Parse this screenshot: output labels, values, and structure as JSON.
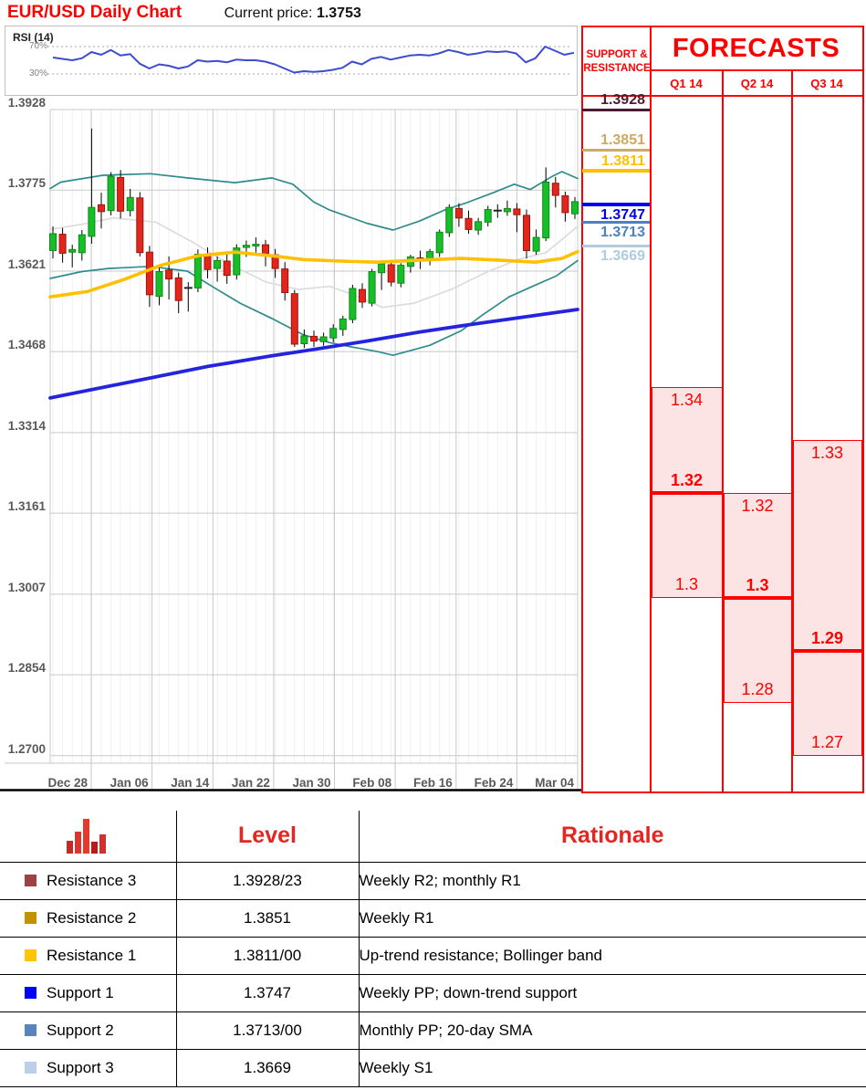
{
  "header": {
    "title": "EUR/USD Daily Chart",
    "current_price_label": "Current price:",
    "current_price": "1.3753"
  },
  "rsi": {
    "label": "RSI (14)",
    "upper_label": "70%",
    "lower_label": "30%",
    "upper": 70,
    "lower": 30,
    "line_color": "#3C4CD0",
    "values": [
      54,
      52,
      50,
      53,
      62,
      58,
      65,
      57,
      59,
      45,
      38,
      44,
      42,
      38,
      41,
      50,
      48,
      49,
      47,
      51,
      50,
      50,
      48,
      44,
      38,
      32,
      34,
      33,
      34,
      36,
      39,
      48,
      44,
      52,
      55,
      51,
      54,
      57,
      58,
      57,
      60,
      65,
      62,
      58,
      60,
      63,
      62,
      63,
      60,
      47,
      53,
      70,
      64,
      58,
      61
    ]
  },
  "chart_data": {
    "type": "candlestick",
    "title": "EUR/USD Daily Chart",
    "ylabel": "",
    "xlabel": "",
    "ylim": [
      1.27,
      1.3928
    ],
    "grid": true,
    "y_ticks": [
      "1.3928",
      "1.3775",
      "1.3621",
      "1.3468",
      "1.3314",
      "1.3161",
      "1.3007",
      "1.2854",
      "1.2700"
    ],
    "x_ticks": [
      "Dec 28",
      "Jan 06",
      "Jan 14",
      "Jan 22",
      "Jan 30",
      "Feb 08",
      "Feb 16",
      "Feb 24",
      "Mar 04"
    ],
    "colors": {
      "up_fill": "#17BE29",
      "up_stroke": "#0B8A16",
      "down_fill": "#E2261B",
      "down_stroke": "#9E130B",
      "wick": "#000000"
    },
    "candles": [
      [
        1.366,
        1.3706,
        1.3645,
        1.3692
      ],
      [
        1.3691,
        1.3703,
        1.3637,
        1.3655
      ],
      [
        1.3657,
        1.3671,
        1.3628,
        1.3662
      ],
      [
        1.3656,
        1.3699,
        1.3641,
        1.369
      ],
      [
        1.3687,
        1.3892,
        1.3673,
        1.3742
      ],
      [
        1.3747,
        1.377,
        1.3702,
        1.3734
      ],
      [
        1.3736,
        1.3809,
        1.3727,
        1.3801
      ],
      [
        1.3799,
        1.3813,
        1.3721,
        1.3735
      ],
      [
        1.3736,
        1.3777,
        1.3725,
        1.3761
      ],
      [
        1.376,
        1.3771,
        1.3649,
        1.3656
      ],
      [
        1.3657,
        1.3669,
        1.3553,
        1.3576
      ],
      [
        1.3573,
        1.3633,
        1.3556,
        1.362
      ],
      [
        1.3623,
        1.3649,
        1.3567,
        1.3606
      ],
      [
        1.3608,
        1.3618,
        1.3541,
        1.3565
      ],
      [
        1.3588,
        1.36,
        1.3544,
        1.359
      ],
      [
        1.3589,
        1.3662,
        1.3581,
        1.3653
      ],
      [
        1.3651,
        1.3666,
        1.3607,
        1.3624
      ],
      [
        1.3626,
        1.3649,
        1.3601,
        1.3641
      ],
      [
        1.364,
        1.3654,
        1.3597,
        1.3613
      ],
      [
        1.3614,
        1.3672,
        1.3605,
        1.3665
      ],
      [
        1.3666,
        1.3679,
        1.3648,
        1.367
      ],
      [
        1.3669,
        1.3685,
        1.3656,
        1.3672
      ],
      [
        1.3671,
        1.368,
        1.363,
        1.3654
      ],
      [
        1.3652,
        1.3663,
        1.3608,
        1.3626
      ],
      [
        1.3625,
        1.3638,
        1.3565,
        1.358
      ],
      [
        1.3578,
        1.3585,
        1.3477,
        1.3482
      ],
      [
        1.3483,
        1.351,
        1.3475,
        1.3498
      ],
      [
        1.3497,
        1.3508,
        1.3477,
        1.3488
      ],
      [
        1.3487,
        1.3504,
        1.3479,
        1.3496
      ],
      [
        1.3494,
        1.352,
        1.3486,
        1.3512
      ],
      [
        1.351,
        1.3536,
        1.3498,
        1.353
      ],
      [
        1.3529,
        1.3595,
        1.3522,
        1.3588
      ],
      [
        1.3586,
        1.3598,
        1.3551,
        1.3562
      ],
      [
        1.356,
        1.3625,
        1.3554,
        1.362
      ],
      [
        1.3618,
        1.3641,
        1.3585,
        1.3635
      ],
      [
        1.3633,
        1.364,
        1.3592,
        1.36
      ],
      [
        1.3598,
        1.3636,
        1.359,
        1.3632
      ],
      [
        1.363,
        1.3652,
        1.3618,
        1.3648
      ],
      [
        1.3646,
        1.366,
        1.3625,
        1.3642
      ],
      [
        1.3641,
        1.3663,
        1.3632,
        1.3658
      ],
      [
        1.3656,
        1.37,
        1.3648,
        1.3695
      ],
      [
        1.3694,
        1.3748,
        1.3686,
        1.3742
      ],
      [
        1.374,
        1.375,
        1.3705,
        1.3722
      ],
      [
        1.3721,
        1.3736,
        1.3692,
        1.37
      ],
      [
        1.3699,
        1.3722,
        1.369,
        1.3715
      ],
      [
        1.3714,
        1.3745,
        1.3706,
        1.3738
      ],
      [
        1.3737,
        1.3748,
        1.3722,
        1.3735
      ],
      [
        1.3734,
        1.3755,
        1.3726,
        1.374
      ],
      [
        1.3739,
        1.375,
        1.3695,
        1.3728
      ],
      [
        1.3727,
        1.3738,
        1.3645,
        1.366
      ],
      [
        1.3659,
        1.37,
        1.3652,
        1.3685
      ],
      [
        1.3684,
        1.3818,
        1.3678,
        1.379
      ],
      [
        1.3788,
        1.38,
        1.3742,
        1.3765
      ],
      [
        1.3764,
        1.3772,
        1.3715,
        1.3732
      ],
      [
        1.373,
        1.3762,
        1.372,
        1.3753
      ]
    ],
    "overlays": {
      "bollinger_upper": {
        "name": "bollinger-upper",
        "color": "#2E8C8C",
        "width": 1.7,
        "points": [
          [
            0.0,
            1.3778
          ],
          [
            0.02,
            1.379
          ],
          [
            0.1,
            1.3803
          ],
          [
            0.19,
            1.3806
          ],
          [
            0.26,
            1.3798
          ],
          [
            0.35,
            1.3789
          ],
          [
            0.42,
            1.3798
          ],
          [
            0.46,
            1.3786
          ],
          [
            0.5,
            1.3752
          ],
          [
            0.53,
            1.3737
          ],
          [
            0.6,
            1.3712
          ],
          [
            0.65,
            1.3699
          ],
          [
            0.7,
            1.3716
          ],
          [
            0.75,
            1.3738
          ],
          [
            0.79,
            1.3751
          ],
          [
            0.84,
            1.377
          ],
          [
            0.88,
            1.3786
          ],
          [
            0.91,
            1.3776
          ],
          [
            0.95,
            1.38
          ],
          [
            0.97,
            1.381
          ],
          [
            1.0,
            1.3797
          ]
        ]
      },
      "bollinger_lower": {
        "name": "bollinger-lower",
        "color": "#2E8C8C",
        "width": 1.7,
        "points": [
          [
            0.0,
            1.3607
          ],
          [
            0.06,
            1.362
          ],
          [
            0.11,
            1.3626
          ],
          [
            0.19,
            1.363
          ],
          [
            0.26,
            1.3621
          ],
          [
            0.31,
            1.359
          ],
          [
            0.36,
            1.356
          ],
          [
            0.42,
            1.3531
          ],
          [
            0.48,
            1.35
          ],
          [
            0.53,
            1.3485
          ],
          [
            0.56,
            1.3479
          ],
          [
            0.62,
            1.3468
          ],
          [
            0.65,
            1.3461
          ],
          [
            0.72,
            1.348
          ],
          [
            0.78,
            1.3508
          ],
          [
            0.82,
            1.3538
          ],
          [
            0.87,
            1.3572
          ],
          [
            0.91,
            1.359
          ],
          [
            0.96,
            1.3612
          ],
          [
            1.0,
            1.3641
          ]
        ]
      },
      "sma20": {
        "name": "sma-20",
        "color": "#DCDCDC",
        "width": 1.7,
        "points": [
          [
            0.0,
            1.37
          ],
          [
            0.06,
            1.371
          ],
          [
            0.12,
            1.3722
          ],
          [
            0.2,
            1.3714
          ],
          [
            0.27,
            1.3676
          ],
          [
            0.34,
            1.3634
          ],
          [
            0.41,
            1.36
          ],
          [
            0.47,
            1.3586
          ],
          [
            0.53,
            1.3592
          ],
          [
            0.58,
            1.3574
          ],
          [
            0.63,
            1.3552
          ],
          [
            0.69,
            1.356
          ],
          [
            0.76,
            1.3586
          ],
          [
            0.83,
            1.362
          ],
          [
            0.89,
            1.3644
          ],
          [
            0.94,
            1.3656
          ],
          [
            1.0,
            1.3706
          ]
        ]
      },
      "sma_slow": {
        "name": "sma-slow",
        "color": "#FFC000",
        "width": 3.6,
        "points": [
          [
            0.0,
            1.3572
          ],
          [
            0.07,
            1.3582
          ],
          [
            0.14,
            1.3605
          ],
          [
            0.21,
            1.3632
          ],
          [
            0.28,
            1.365
          ],
          [
            0.35,
            1.3657
          ],
          [
            0.42,
            1.365
          ],
          [
            0.48,
            1.3643
          ],
          [
            0.55,
            1.364
          ],
          [
            0.62,
            1.3638
          ],
          [
            0.7,
            1.3642
          ],
          [
            0.78,
            1.3645
          ],
          [
            0.85,
            1.3642
          ],
          [
            0.92,
            1.3638
          ],
          [
            0.97,
            1.3645
          ],
          [
            1.0,
            1.3658
          ]
        ]
      },
      "trend": {
        "name": "up-trend-line",
        "color": "#2424DF",
        "width": 3.8,
        "points": [
          [
            0.0,
            1.338
          ],
          [
            0.15,
            1.341
          ],
          [
            0.3,
            1.344
          ],
          [
            0.42,
            1.346
          ],
          [
            0.5,
            1.3472
          ],
          [
            0.6,
            1.3488
          ],
          [
            0.7,
            1.3505
          ],
          [
            0.8,
            1.352
          ],
          [
            0.9,
            1.3534
          ],
          [
            1.0,
            1.3548
          ]
        ]
      }
    }
  },
  "support_resistance": {
    "header_line1": "SUPPORT &",
    "header_line2": "RESISTANCE",
    "levels": [
      {
        "value": "1.3928",
        "price": 1.3928,
        "color": "#4E1A33",
        "label_pos": "above",
        "line_h": 3
      },
      {
        "value": "1.3851",
        "price": 1.3851,
        "color": "#CDA961",
        "label_pos": "above",
        "line_h": 3
      },
      {
        "value": "1.3811",
        "price": 1.3811,
        "color": "#FFC000",
        "label_pos": "above",
        "line_h": 4
      },
      {
        "value": "1.3747",
        "price": 1.3747,
        "color": "#0000EE",
        "label_pos": "below",
        "line_h": 4
      },
      {
        "value": "1.3713",
        "price": 1.3713,
        "color": "#4E81BD",
        "label_pos": "below",
        "line_h": 3
      },
      {
        "value": "1.3669",
        "price": 1.3669,
        "color": "#AECCDE",
        "label_pos": "below",
        "line_h": 3
      }
    ]
  },
  "forecasts": {
    "title": "FORECASTS",
    "box_fill": "#FCE4E4",
    "accent": "#FF0000",
    "columns": [
      {
        "label": "Q1 14",
        "top_label": "1.34",
        "top_price": 1.34,
        "mid_label": "1.32",
        "mid_price": 1.32,
        "bottom_label": "1.3",
        "bottom_price": 1.3
      },
      {
        "label": "Q2 14",
        "top_label": "1.32",
        "top_price": 1.32,
        "mid_label": "1.3",
        "mid_price": 1.3,
        "bottom_label": "1.28",
        "bottom_price": 1.28
      },
      {
        "label": "Q3 14",
        "top_label": "1.33",
        "top_price": 1.33,
        "mid_label": "1.29",
        "mid_price": 1.29,
        "bottom_label": "1.27",
        "bottom_price": 1.27
      }
    ]
  },
  "table": {
    "level_header": "Level",
    "rationale_header": "Rationale",
    "icon": "bar-chart-icon",
    "icon_bar_colors": [
      "#C62828",
      "#D93831",
      "#E23B2E",
      "#B71C1C",
      "#D32F2F"
    ],
    "rows": [
      {
        "name": "Resistance 3",
        "color": "#9E4144",
        "level": "1.3928/23",
        "rationale": "Weekly R2; monthly R1"
      },
      {
        "name": "Resistance 2",
        "color": "#C49102",
        "level": "1.3851",
        "rationale": "Weekly R1"
      },
      {
        "name": "Resistance 1",
        "color": "#FFC408",
        "level": "1.3811/00",
        "rationale": "Up-trend resistance; Bollinger band"
      },
      {
        "name": "Support 1",
        "color": "#0000FE",
        "level": "1.3747",
        "rationale": "Weekly PP; down-trend support"
      },
      {
        "name": "Support 2",
        "color": "#5885BE",
        "level": "1.3713/00",
        "rationale": "Monthly PP; 20-day SMA"
      },
      {
        "name": "Support 3",
        "color": "#BCCFE8",
        "level": "1.3669",
        "rationale": "Weekly S1"
      }
    ]
  }
}
